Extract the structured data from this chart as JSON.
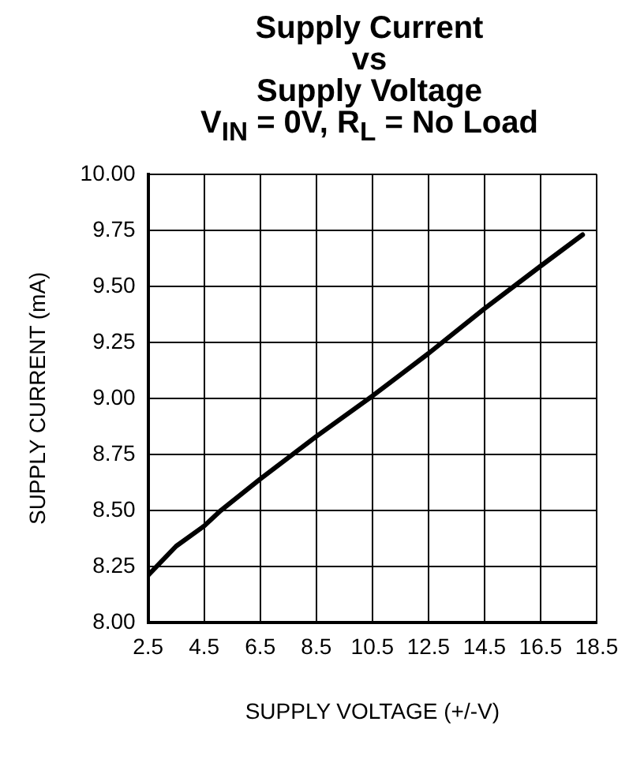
{
  "chart_data": {
    "type": "line",
    "title": "Supply Current\nvs\nSupply Voltage\nV$_{IN}$ = 0V, R$_{L}$ = No Load",
    "xlabel": "SUPPLY VOLTAGE (+/-V)",
    "ylabel": "SUPPLY CURRENT (mA)",
    "x": [
      2.5,
      3.5,
      4.5,
      5.1,
      6.5,
      8.5,
      10.5,
      12.5,
      14.5,
      16.5,
      18
    ],
    "series": [
      {
        "color": "#000000",
        "values": [
          8.21,
          8.34,
          8.43,
          8.5,
          8.64,
          8.83,
          9.01,
          9.2,
          9.4,
          9.59,
          9.73
        ]
      }
    ],
    "xlim": [
      2.5,
      18.5
    ],
    "xticks": [
      2.5,
      4.5,
      6.5,
      8.5,
      10.5,
      12.5,
      14.5,
      16.5,
      18.5
    ],
    "ylim": [
      8,
      10
    ],
    "yticks": [
      {
        "value": 8,
        "label": "8.00"
      },
      {
        "value": 8.25,
        "label": "8.25"
      },
      {
        "value": 8.5,
        "label": "8.50"
      },
      {
        "value": 8.75,
        "label": "8.75"
      },
      {
        "value": 9,
        "label": "9.00"
      },
      {
        "value": 9.25,
        "label": "9.25"
      },
      {
        "value": 9.5,
        "label": "9.50"
      },
      {
        "value": 9.75,
        "label": "9.75"
      },
      {
        "value": 10,
        "label": "10.00"
      }
    ],
    "grid": true,
    "legend": false,
    "marker": "none",
    "line_style": "solid"
  }
}
